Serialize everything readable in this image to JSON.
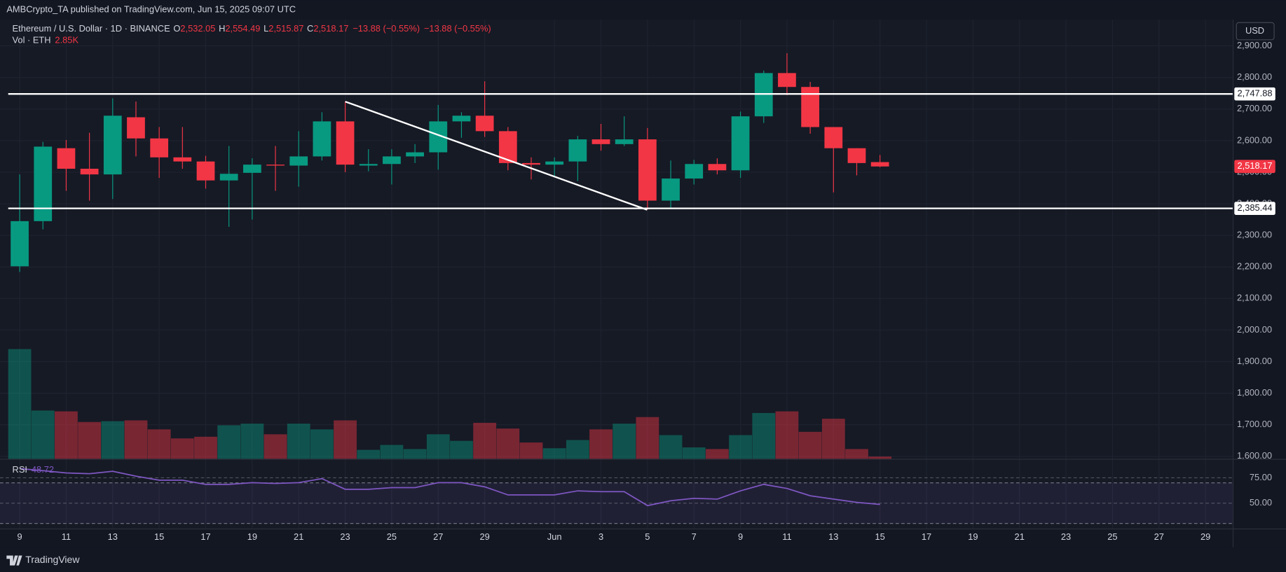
{
  "chart_data": {
    "type": "candlestick",
    "published": "AMBCrypto_TA published on TradingView.com, Jun 15, 2025 09:07 UTC",
    "title": "Ethereum / U.S. Dollar · 1D · BINANCE",
    "ohlc_text": [
      {
        "key": "O",
        "value": "2,532.05"
      },
      {
        "key": "H",
        "value": "2,554.49"
      },
      {
        "key": "L",
        "value": "2,515.87"
      },
      {
        "key": "C",
        "value": "2,518.17"
      }
    ],
    "change": [
      "−13.88 (−0.55%)",
      "−13.88 (−0.55%)"
    ],
    "currency": "USD",
    "brand": "TradingView",
    "up_color": "#089981",
    "down_color": "#f23645",
    "categories": [
      "9",
      null,
      "11",
      null,
      "13",
      null,
      "15",
      null,
      "17",
      null,
      "19",
      null,
      "21",
      null,
      "23",
      null,
      "25",
      null,
      "27",
      null,
      "29",
      null,
      null,
      "Jun",
      null,
      "3",
      null,
      "5",
      null,
      "7",
      null,
      "9",
      null,
      "11",
      null,
      "13",
      null,
      "15",
      null,
      "17",
      null,
      "19",
      null,
      "21",
      null,
      "23",
      null,
      "25",
      null,
      "27",
      null,
      "29"
    ],
    "open": [
      2202,
      2345,
      2576,
      2511,
      2493,
      2674,
      2607,
      2547,
      2534,
      2474,
      2498,
      2524,
      2521,
      2550,
      2661,
      2521,
      2526,
      2550,
      2563,
      2661,
      2679,
      2630,
      2529,
      2524,
      2534,
      2604,
      2589,
      2604,
      2410,
      2480,
      2526,
      2506,
      2677,
      2814,
      2770,
      2643,
      2576,
      2532.05,
      null,
      null,
      null,
      null,
      null,
      null,
      null,
      null,
      null,
      null,
      null,
      null,
      null,
      null
    ],
    "high": [
      2493,
      2596,
      2602,
      2625,
      2734,
      2724,
      2643,
      2643,
      2552,
      2583,
      2544,
      2583,
      2630,
      2690,
      2724,
      2573,
      2573,
      2589,
      2713,
      2690,
      2788,
      2643,
      2547,
      2547,
      2615,
      2653,
      2677,
      2640,
      2537,
      2539,
      2544,
      2692,
      2822,
      2877,
      2786,
      2643,
      2576,
      2554.49,
      null,
      null,
      null,
      null,
      null,
      null,
      null,
      null,
      null,
      null,
      null,
      null,
      null,
      null
    ],
    "low": [
      2184,
      2319,
      2441,
      2410,
      2415,
      2550,
      2482,
      2511,
      2448,
      2327,
      2350,
      2441,
      2454,
      2537,
      2500,
      2503,
      2461,
      2529,
      2508,
      2609,
      2612,
      2506,
      2477,
      2485,
      2472,
      2568,
      2583,
      2381,
      2386,
      2461,
      2493,
      2482,
      2656,
      2744,
      2622,
      2436,
      2490,
      2515.87,
      null,
      null,
      null,
      null,
      null,
      null,
      null,
      null,
      null,
      null,
      null,
      null,
      null,
      null
    ],
    "close": [
      2345,
      2581,
      2511,
      2493,
      2679,
      2607,
      2547,
      2534,
      2474,
      2495,
      2524,
      2521,
      2550,
      2661,
      2524,
      2526,
      2550,
      2563,
      2661,
      2679,
      2630,
      2529,
      2524,
      2534,
      2604,
      2589,
      2604,
      2410,
      2480,
      2526,
      2506,
      2677,
      2814,
      2770,
      2643,
      2576,
      2529,
      2518.17,
      null,
      null,
      null,
      null,
      null,
      null,
      null,
      null,
      null,
      null,
      null,
      null,
      null,
      null
    ],
    "ylim": [
      1592,
      2983
    ],
    "yticks": [
      {
        "value": 1600,
        "label": "1,600.00"
      },
      {
        "value": 1700,
        "label": "1,700.00"
      },
      {
        "value": 1800,
        "label": "1,800.00"
      },
      {
        "value": 1900,
        "label": "1,900.00"
      },
      {
        "value": 2000,
        "label": "2,000.00"
      },
      {
        "value": 2100,
        "label": "2,100.00"
      },
      {
        "value": 2200,
        "label": "2,200.00"
      },
      {
        "value": 2300,
        "label": "2,300.00"
      },
      {
        "value": 2400,
        "label": "2,400.00"
      },
      {
        "value": 2500,
        "label": "2,500.00"
      },
      {
        "value": 2600,
        "label": "2,600.00"
      },
      {
        "value": 2700,
        "label": "2,700.00"
      },
      {
        "value": 2800,
        "label": "2,800.00"
      },
      {
        "value": 2900,
        "label": "2,900.00"
      }
    ],
    "grid": true,
    "levels": [
      {
        "value": 2747.88,
        "label": "2,747.88"
      },
      {
        "value": 2385.44,
        "label": "2,385.44"
      }
    ],
    "last_price": {
      "value": 2518.17,
      "label": "2,518.17"
    },
    "volume": {
      "name": "Vol · ETH",
      "label": "2.85K",
      "values": [
        134,
        59,
        58,
        45,
        46,
        47,
        36,
        25,
        27,
        41,
        43,
        30,
        43,
        36,
        47,
        11,
        17,
        12,
        30,
        22,
        44,
        37,
        20,
        13,
        23,
        36,
        43,
        51,
        29,
        14,
        12,
        29,
        56,
        58,
        33,
        49,
        12,
        2.85,
        null,
        null,
        null,
        null,
        null,
        null,
        null,
        null,
        null,
        null,
        null,
        null,
        null,
        null
      ]
    },
    "rsi": {
      "name": "RSI",
      "label": "48.72",
      "color": "#7e57c2",
      "values": [
        84,
        82,
        79.8,
        79,
        81.4,
        76.6,
        72.6,
        72.6,
        68.5,
        68.5,
        70.2,
        69.4,
        70.2,
        74.2,
        63.7,
        63.7,
        65.3,
        65.3,
        70.2,
        70.2,
        66.1,
        58.1,
        58.1,
        58.1,
        62.1,
        61.3,
        61.3,
        47.6,
        52.4,
        54.8,
        54,
        62.1,
        68.5,
        64.5,
        57.3,
        54,
        50.8,
        48.72,
        null,
        null,
        null,
        null,
        null,
        null,
        null,
        null,
        null,
        null,
        null,
        null,
        null,
        null
      ],
      "ylim": [
        25,
        92
      ],
      "yticks": [
        {
          "value": 75,
          "label": "75.00"
        },
        {
          "value": 50,
          "label": "50.00"
        }
      ],
      "band": [
        30,
        70
      ]
    }
  }
}
